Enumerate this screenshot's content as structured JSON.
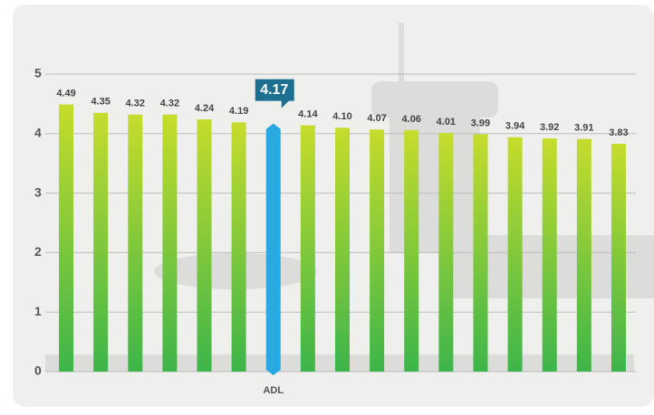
{
  "chart_data": {
    "type": "bar",
    "categories": [
      null,
      null,
      null,
      null,
      null,
      null,
      "ADL",
      null,
      null,
      null,
      null,
      null,
      null,
      null,
      null,
      null,
      null
    ],
    "values": [
      4.49,
      4.35,
      4.32,
      4.32,
      4.24,
      4.19,
      4.17,
      4.14,
      4.1,
      4.07,
      4.06,
      4.01,
      3.99,
      3.94,
      3.92,
      3.91,
      3.83
    ],
    "value_labels": [
      "4.49",
      "4.35",
      "4.32",
      "4.32",
      "4.24",
      "4.19",
      "4.17",
      "4.14",
      "4.10",
      "4.07",
      "4.06",
      "4.01",
      "3.99",
      "3.94",
      "3.92",
      "3.91",
      "3.83"
    ],
    "color": "#5dbb46",
    "highlight_color": "#29a9e0",
    "ylim": [
      0,
      5
    ],
    "yticks": [
      0,
      1,
      2,
      3,
      4,
      5
    ],
    "grid": true
  }
}
